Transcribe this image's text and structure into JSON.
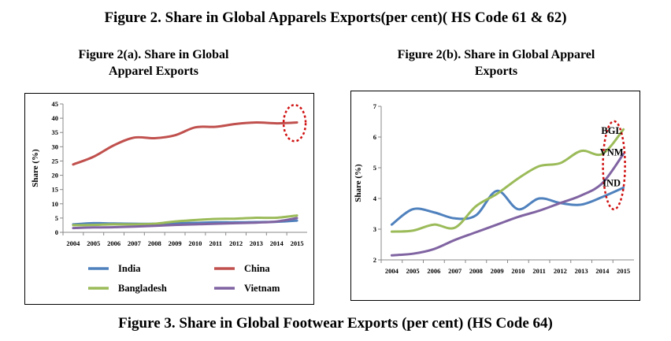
{
  "header": {
    "title": "Figure 2. Share in Global  Apparels Exports(per cent)( HS Code 61 & 62)"
  },
  "footer": {
    "title": "Figure 3. Share in Global Footwear Exports (per cent) (HS Code 64)"
  },
  "colors": {
    "india": "#4F81BD",
    "china": "#C0504D",
    "bangladesh": "#9BBB59",
    "vietnam": "#8064A2",
    "highlight": "#d01010"
  },
  "chart_data": [
    {
      "type": "line",
      "title": "Figure 2(a). Share in Global Apparel Exports",
      "title_lines": [
        "Figure 2(a). Share in Global",
        "Apparel Exports"
      ],
      "xlabel": "",
      "ylabel": "Share (%)",
      "x": [
        "2004",
        "2005",
        "2006",
        "2007",
        "2008",
        "2009",
        "2010",
        "2011",
        "2012",
        "2013",
        "2014",
        "2015"
      ],
      "ylim": [
        0,
        45
      ],
      "yticks": [
        0,
        5,
        10,
        15,
        20,
        25,
        30,
        35,
        40,
        45
      ],
      "grid": false,
      "legend": "bottom",
      "series": [
        {
          "name": "India",
          "values": [
            2.8,
            3.2,
            3.1,
            3.0,
            3.0,
            3.2,
            3.3,
            3.5,
            3.5,
            3.6,
            3.7,
            4.1
          ]
        },
        {
          "name": "China",
          "values": [
            23.8,
            26.5,
            30.5,
            33.2,
            33.0,
            34.0,
            36.8,
            37.0,
            38.0,
            38.5,
            38.2,
            38.5
          ]
        },
        {
          "name": "Bangladesh",
          "values": [
            2.5,
            2.6,
            2.8,
            2.8,
            3.0,
            3.8,
            4.3,
            4.7,
            4.8,
            5.1,
            5.1,
            5.9
          ]
        },
        {
          "name": "Vietnam",
          "values": [
            1.5,
            1.7,
            1.8,
            2.0,
            2.3,
            2.6,
            2.8,
            3.0,
            3.2,
            3.4,
            3.8,
            5.0
          ]
        }
      ],
      "legend_order": [
        "India",
        "China",
        "Bangladesh",
        "Vietnam"
      ]
    },
    {
      "type": "line",
      "title": "Figure 2(b).  Share in Global Apparel Exports",
      "title_lines": [
        "Figure 2(b).  Share in Global Apparel",
        "Exports"
      ],
      "xlabel": "",
      "ylabel": "Share (%)",
      "x": [
        "2004",
        "2005",
        "2006",
        "2007",
        "2008",
        "2009",
        "2010",
        "2011",
        "2012",
        "2013",
        "2014",
        "2015"
      ],
      "ylim": [
        2,
        7
      ],
      "yticks": [
        2,
        3,
        4,
        5,
        6,
        7
      ],
      "grid": false,
      "legend": "none",
      "series": [
        {
          "name": "India",
          "values": [
            3.15,
            3.65,
            3.55,
            3.35,
            3.45,
            4.25,
            3.65,
            4.0,
            3.85,
            3.8,
            4.05,
            4.35
          ]
        },
        {
          "name": "Bangladesh",
          "values": [
            2.92,
            2.95,
            3.15,
            3.05,
            3.75,
            4.15,
            4.65,
            5.05,
            5.15,
            5.55,
            5.45,
            6.25
          ]
        },
        {
          "name": "Vietnam",
          "values": [
            2.15,
            2.2,
            2.35,
            2.65,
            2.9,
            3.15,
            3.4,
            3.6,
            3.85,
            4.1,
            4.5,
            5.45
          ]
        }
      ],
      "annotations": [
        "BGL",
        "VNM",
        "IND"
      ]
    }
  ]
}
